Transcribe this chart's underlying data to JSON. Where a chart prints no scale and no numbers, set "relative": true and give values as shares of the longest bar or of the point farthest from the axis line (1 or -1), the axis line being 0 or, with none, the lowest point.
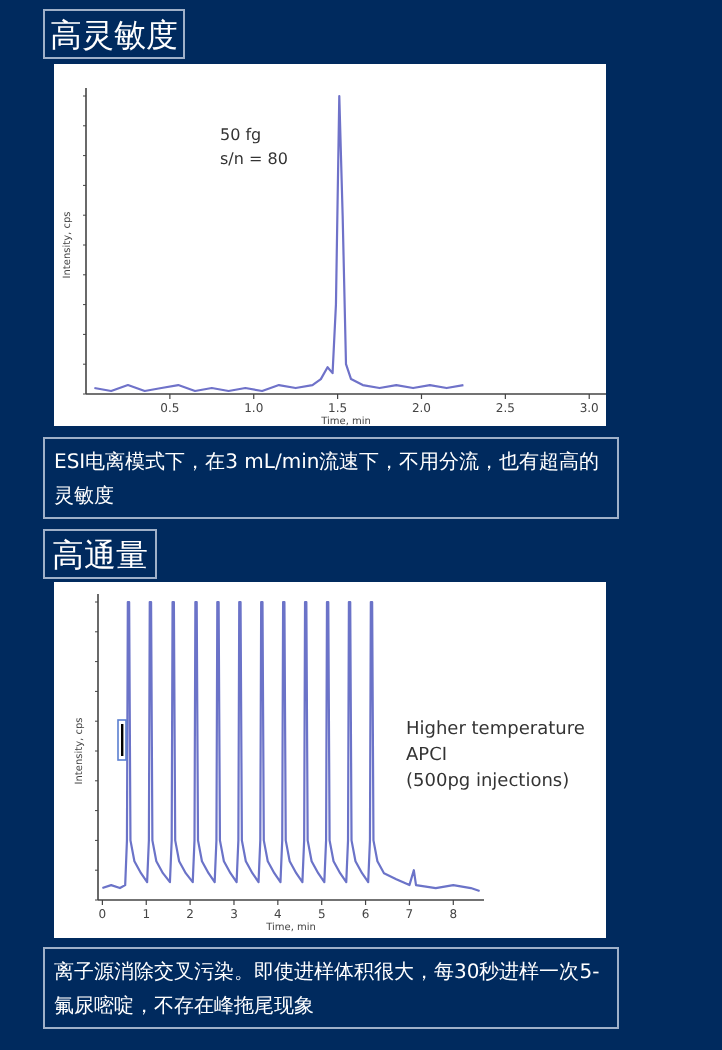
{
  "chart_data": [
    {
      "type": "line",
      "title": "高灵敏度",
      "xlabel": "Time, min",
      "ylabel": "Intensity, cps",
      "relative": true,
      "color": "#6f72c9",
      "xlim": [
        0,
        3.1
      ],
      "xticks": [
        {
          "value": 0.5,
          "label": "0.5"
        },
        {
          "value": 1,
          "label": "1.0"
        },
        {
          "value": 1.5,
          "label": "1.5"
        },
        {
          "value": 2,
          "label": "2.0"
        },
        {
          "value": 2.5,
          "label": "2.5"
        },
        {
          "value": 3,
          "label": "3.0"
        }
      ],
      "x": [
        0.05,
        0.15,
        0.25,
        0.35,
        0.45,
        0.55,
        0.65,
        0.75,
        0.85,
        0.95,
        1.05,
        1.15,
        1.25,
        1.35,
        1.4,
        1.44,
        1.47,
        1.49,
        1.51,
        1.53,
        1.55,
        1.58,
        1.65,
        1.75,
        1.85,
        1.95,
        2.05,
        2.15,
        2.25
      ],
      "values": [
        0.02,
        0.01,
        0.03,
        0.01,
        0.02,
        0.03,
        0.01,
        0.02,
        0.01,
        0.02,
        0.01,
        0.03,
        0.02,
        0.03,
        0.05,
        0.09,
        0.07,
        0.3,
        1,
        0.6,
        0.1,
        0.05,
        0.03,
        0.02,
        0.03,
        0.02,
        0.03,
        0.02,
        0.03
      ],
      "annotations": [
        "50 fg",
        "s/n = 80",
        "ESI电离模式下，在3 mL/min流速下，不用分流，也有超高的灵敏度"
      ]
    },
    {
      "type": "line",
      "title": "高通量",
      "xlabel": "Time, min",
      "ylabel": "Intensity, cps",
      "relative": true,
      "color": "#6b73c8",
      "xlim": [
        -0.1,
        8.7
      ],
      "xticks": [
        0,
        1,
        2,
        3,
        4,
        5,
        6,
        7,
        8
      ],
      "x": [
        0,
        0.2,
        0.4,
        0.52,
        0.56,
        0.58,
        0.61,
        0.64,
        0.73,
        0.88,
        1.02,
        1.06,
        1.08,
        1.11,
        1.14,
        1.23,
        1.38,
        1.54,
        1.58,
        1.6,
        1.63,
        1.66,
        1.75,
        1.9,
        2.06,
        2.1,
        2.12,
        2.15,
        2.18,
        2.27,
        2.42,
        2.56,
        2.6,
        2.62,
        2.65,
        2.68,
        2.77,
        2.92,
        3.06,
        3.1,
        3.12,
        3.15,
        3.18,
        3.27,
        3.42,
        3.56,
        3.6,
        3.62,
        3.65,
        3.68,
        3.77,
        3.92,
        4.06,
        4.1,
        4.12,
        4.15,
        4.18,
        4.27,
        4.42,
        4.56,
        4.6,
        4.62,
        4.65,
        4.68,
        4.77,
        4.92,
        5.06,
        5.1,
        5.12,
        5.15,
        5.18,
        5.27,
        5.42,
        5.56,
        5.6,
        5.62,
        5.65,
        5.68,
        5.77,
        5.92,
        6.06,
        6.1,
        6.12,
        6.15,
        6.18,
        6.27,
        6.42,
        6.7,
        7.0,
        7.1,
        7.15,
        7.6,
        8.0,
        8.4,
        8.6
      ],
      "values": [
        0.04,
        0.05,
        0.04,
        0.05,
        0.2,
        1,
        1,
        0.2,
        0.13,
        0.09,
        0.06,
        0.2,
        1,
        1,
        0.2,
        0.13,
        0.09,
        0.06,
        0.2,
        1,
        1,
        0.2,
        0.13,
        0.09,
        0.06,
        0.2,
        1,
        1,
        0.2,
        0.13,
        0.09,
        0.06,
        0.2,
        1,
        1,
        0.2,
        0.13,
        0.09,
        0.06,
        0.2,
        1,
        1,
        0.2,
        0.13,
        0.09,
        0.06,
        0.2,
        1,
        1,
        0.2,
        0.13,
        0.09,
        0.06,
        0.2,
        1,
        1,
        0.2,
        0.13,
        0.09,
        0.06,
        0.2,
        1,
        1,
        0.2,
        0.13,
        0.09,
        0.06,
        0.2,
        1,
        1,
        0.2,
        0.13,
        0.09,
        0.06,
        0.2,
        1,
        1,
        0.2,
        0.13,
        0.09,
        0.06,
        0.2,
        1,
        1,
        0.2,
        0.13,
        0.09,
        0.07,
        0.05,
        0.1,
        0.05,
        0.04,
        0.05,
        0.04,
        0.03
      ],
      "annotations": [
        "Higher temperature",
        "APCI",
        "(500pg injections)",
        "离子源消除交叉污染。即使进样体积很大，每30秒进样一次5-氟尿嘧啶，不存在峰拖尾现象"
      ]
    }
  ]
}
